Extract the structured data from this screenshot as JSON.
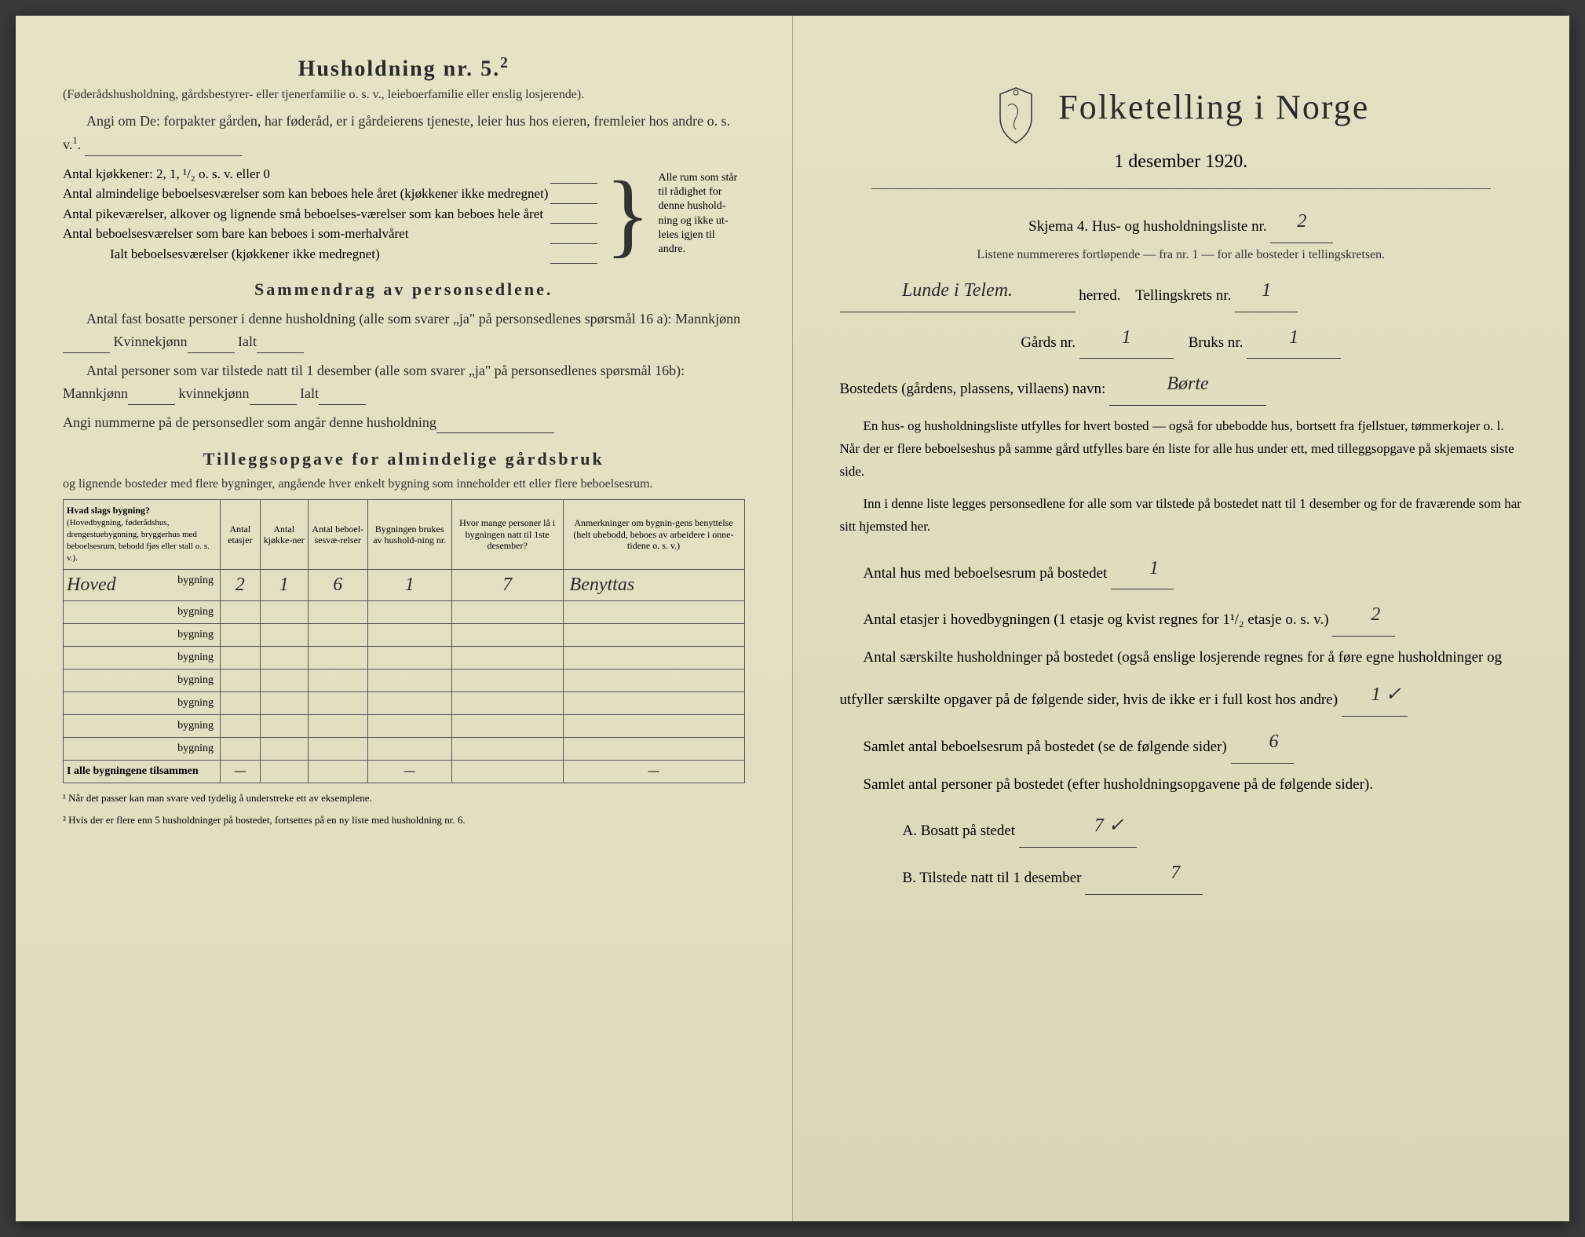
{
  "left": {
    "heading": "Husholdning nr. 5.",
    "heading_sup": "2",
    "sub1": "(Føderådshusholdning, gårdsbestyrer- eller tjenerfamilie o. s. v., leieboerfamilie eller enslig losjerende).",
    "sub2": "Angi om De: forpakter gården, har føderåd, er i gårdeierens tjeneste, leier hus hos eieren, fremleier hos andre o. s. v.",
    "rooms": {
      "r1": "Antal kjøkkener: 2, 1, ¹/₂ o. s. v. eller 0",
      "r2": "Antal almindelige beboelsesværelser som kan beboes hele året (kjøkkener ikke medregnet)",
      "r3": "Antal pikeværelser, alkover og lignende små beboelses-værelser som kan beboes hele året",
      "r4": "Antal beboelsesværelser som bare kan beboes i som-merhalvåret",
      "r5": "Ialt beboelsesværelser (kjøkkener ikke medregnet)",
      "brace_text": "Alle rum som står til rådighet for denne hushold-ning og ikke ut-leies igjen til andre."
    },
    "sammendrag_title": "Sammendrag av personsedlene.",
    "sammendrag1": "Antal fast bosatte personer i denne husholdning (alle som svarer „ja\" på personsedlenes spørsmål 16 a): Mannkjønn",
    "sammendrag1b": "Kvinnekjønn",
    "sammendrag1c": "Ialt",
    "sammendrag2": "Antal personer som var tilstede natt til 1 desember (alle som svarer „ja\" på personsedlenes spørsmål 16b): Mannkjønn",
    "sammendrag2b": "kvinnekjønn",
    "sammendrag2c": "Ialt",
    "sammendrag3": "Angi nummerne på de personsedler som angår denne husholdning",
    "tillegg_title": "Tilleggsopgave for almindelige gårdsbruk",
    "tillegg_sub": "og lignende bosteder med flere bygninger, angående hver enkelt bygning som inneholder ett eller flere beboelsesrum.",
    "table": {
      "headers": {
        "h1": "Hvad slags bygning?",
        "h1_sub": "(Hovedbygning, føderådshus, drengestuebygnning, bryggerhus med beboelsesrum, bebodd fjøs eller stall o. s. v.).",
        "h2": "Antal etasjer",
        "h3": "Antal kjøkke-ner",
        "h4": "Antal beboel-sesvæ-relser",
        "h5": "Bygningen brukes av hushold-ning nr.",
        "h6": "Hvor mange personer lå i bygningen natt til 1ste desember?",
        "h7": "Anmerkninger om bygnin-gens benyttelse (helt ubebodd, beboes av arbeidere i onne-tidene o. s. v.)"
      },
      "row_label": "bygning",
      "rows": [
        {
          "name": "Hoved",
          "etasjer": "2",
          "kjokken": "1",
          "beboelse": "6",
          "hushold": "1",
          "personer": "7",
          "anm": "Benyttas"
        },
        {
          "name": "",
          "etasjer": "",
          "kjokken": "",
          "beboelse": "",
          "hushold": "",
          "personer": "",
          "anm": ""
        },
        {
          "name": "",
          "etasjer": "",
          "kjokken": "",
          "beboelse": "",
          "hushold": "",
          "personer": "",
          "anm": ""
        },
        {
          "name": "",
          "etasjer": "",
          "kjokken": "",
          "beboelse": "",
          "hushold": "",
          "personer": "",
          "anm": ""
        },
        {
          "name": "",
          "etasjer": "",
          "kjokken": "",
          "beboelse": "",
          "hushold": "",
          "personer": "",
          "anm": ""
        },
        {
          "name": "",
          "etasjer": "",
          "kjokken": "",
          "beboelse": "",
          "hushold": "",
          "personer": "",
          "anm": ""
        },
        {
          "name": "",
          "etasjer": "",
          "kjokken": "",
          "beboelse": "",
          "hushold": "",
          "personer": "",
          "anm": ""
        },
        {
          "name": "",
          "etasjer": "",
          "kjokken": "",
          "beboelse": "",
          "hushold": "",
          "personer": "",
          "anm": ""
        }
      ],
      "total_label": "I alle bygningene tilsammen",
      "dash": "—"
    },
    "footnotes": {
      "f1": "¹ Når det passer kan man svare ved tydelig å understreke ett av eksemplene.",
      "f2": "² Hvis der er flere enn 5 husholdninger på bostedet, fortsettes på en ny liste med husholdning nr. 6."
    }
  },
  "right": {
    "title": "Folketelling i Norge",
    "date": "1 desember 1920.",
    "skjema": "Skjema 4.  Hus- og husholdningsliste nr.",
    "skjema_val": "2",
    "listene": "Listene nummereres fortløpende — fra nr. 1 — for alle bosteder i tellingskretsen.",
    "herred_val": "Lunde i Telem.",
    "herred_label": "herred.",
    "tellingskrets_label": "Tellingskrets nr.",
    "tellingskrets_val": "1",
    "gards_label": "Gårds nr.",
    "gards_val": "1",
    "bruks_label": "Bruks nr.",
    "bruks_val": "1",
    "bostedets_label": "Bostedets (gårdens, plassens, villaens) navn:",
    "bostedets_val": "Børte",
    "para1": "En hus- og husholdningsliste utfylles for hvert bosted — også for ubebodde hus, bortsett fra fjellstuer, tømmerkojer o. l. Når der er flere beboelseshus på samme gård utfylles bare én liste for alle hus under ett, med tilleggsopgave på skjemaets siste side.",
    "para2": "Inn i denne liste legges personsedlene for alle som var tilstede på bostedet natt til 1 desember og for de fraværende som har sitt hjemsted her.",
    "q1": "Antal hus med beboelsesrum på bostedet",
    "q1_val": "1",
    "q2a": "Antal etasjer i hovedbygningen (1 etasje og kvist regnes for 1¹/₂ etasje o. s. v.)",
    "q2_val": "2",
    "q3": "Antal særskilte husholdninger på bostedet (også enslige losjerende regnes for å føre egne husholdninger og utfyller særskilte opgaver på de følgende sider, hvis de ikke er i full kost hos andre)",
    "q3_val": "1 ✓",
    "q4": "Samlet antal beboelsesrum på bostedet (se de følgende sider)",
    "q4_val": "6",
    "q5": "Samlet antal personer på bostedet (efter husholdningsopgavene på de følgende sider).",
    "q5a_label": "A.  Bosatt på stedet",
    "q5a_val": "7 ✓",
    "q5b_label": "B.  Tilstede natt til 1 desember",
    "q5b_val": "7"
  },
  "colors": {
    "paper": "#e6e2c6",
    "ink": "#2a2a2a",
    "border": "#555555"
  }
}
